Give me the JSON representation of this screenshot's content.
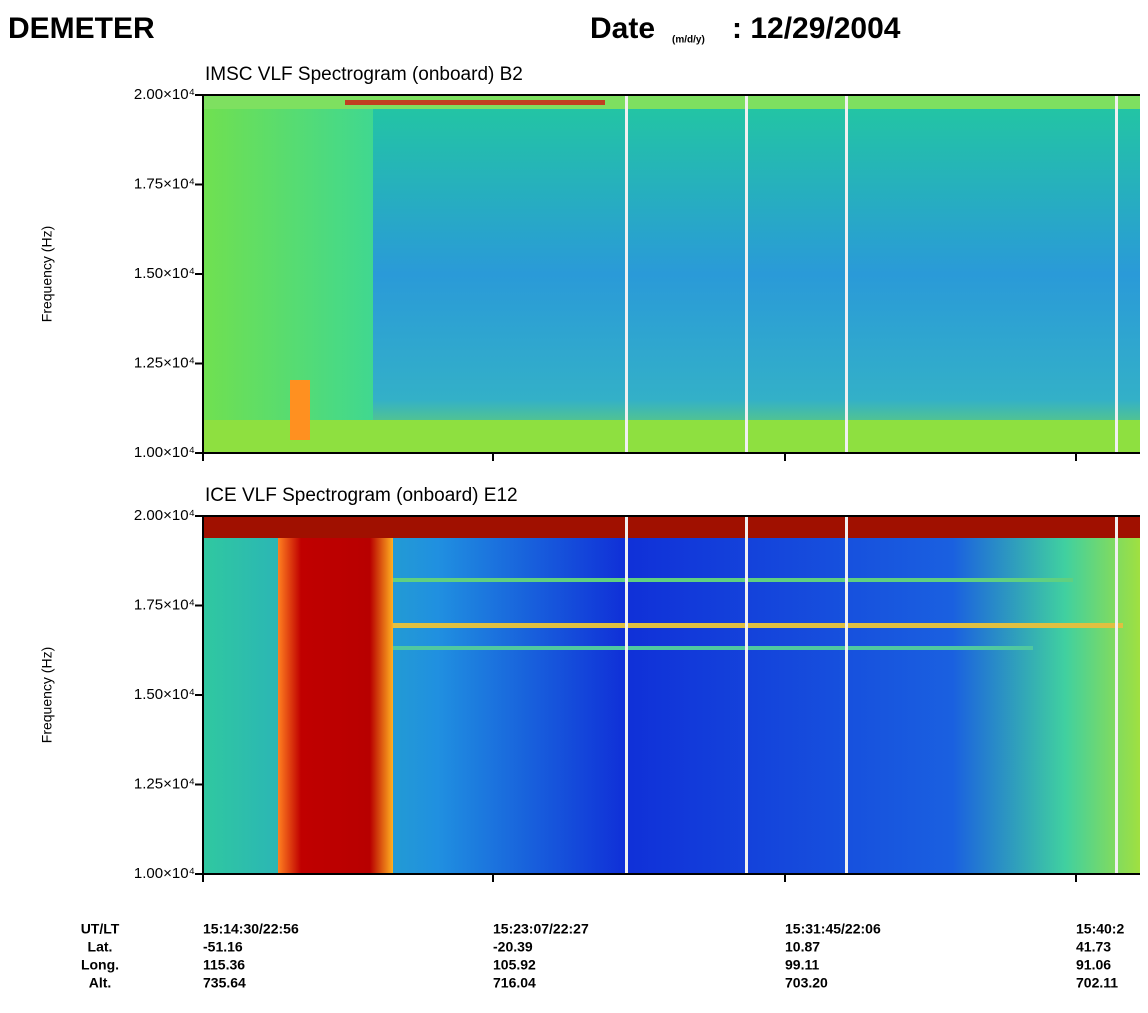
{
  "header": {
    "title": "DEMETER",
    "date_prefix": "Date",
    "date_unit": "(m/d/y)",
    "date": ": 12/29/2004"
  },
  "chart_data": [
    {
      "type": "spectrogram",
      "title": "IMSC VLF Spectrogram (onboard) B2",
      "y_label": "Frequency (Hz)",
      "ylim": [
        10000,
        20000
      ],
      "yticks": [
        {
          "value": 10000,
          "label": "1.00×10⁴"
        },
        {
          "value": 12500,
          "label": "1.25×10⁴"
        },
        {
          "value": 15000,
          "label": "1.50×10⁴"
        },
        {
          "value": 17500,
          "label": "1.75×10⁴"
        },
        {
          "value": 20000,
          "label": "2.00×10⁴"
        }
      ]
    },
    {
      "type": "spectrogram",
      "title": "ICE VLF Spectrogram (onboard) E12",
      "y_label": "Frequency (Hz)",
      "ylim": [
        10000,
        20000
      ],
      "yticks": [
        {
          "value": 10000,
          "label": "1.00×10⁴"
        },
        {
          "value": 12500,
          "label": "1.25×10⁴"
        },
        {
          "value": 15000,
          "label": "1.50×10⁴"
        },
        {
          "value": 17500,
          "label": "1.75×10⁴"
        },
        {
          "value": 20000,
          "label": "2.00×10⁴"
        }
      ]
    }
  ],
  "orbit_table": {
    "row_labels": [
      "UT/LT",
      "Lat.",
      "Long.",
      "Alt."
    ],
    "columns": [
      [
        "15:14:30/22:56",
        "-51.16",
        "115.36",
        "735.64"
      ],
      [
        "15:23:07/22:27",
        "-20.39",
        "105.92",
        "716.04"
      ],
      [
        "15:31:45/22:06",
        "10.87",
        "99.11",
        "703.20"
      ],
      [
        "15:40:2",
        "41.73",
        "91.06",
        "702.11"
      ]
    ]
  }
}
